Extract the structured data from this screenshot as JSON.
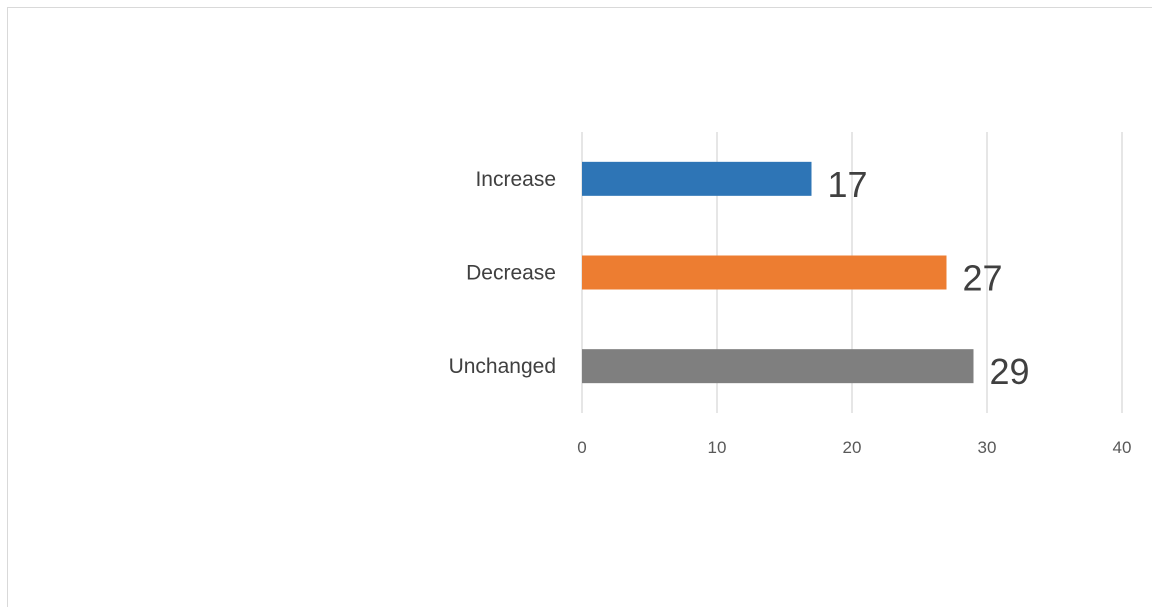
{
  "chart_data": {
    "type": "bar",
    "orientation": "horizontal",
    "categories": [
      "Increase",
      "Decrease",
      "Unchanged"
    ],
    "values": [
      17,
      27,
      29
    ],
    "colors": [
      "#2e75b6",
      "#ed7d31",
      "#7f7f7f"
    ],
    "xlim": [
      0,
      40
    ],
    "xticks": [
      0,
      10,
      20,
      30,
      40
    ],
    "grid": true,
    "data_labels": true,
    "legend": "none"
  }
}
